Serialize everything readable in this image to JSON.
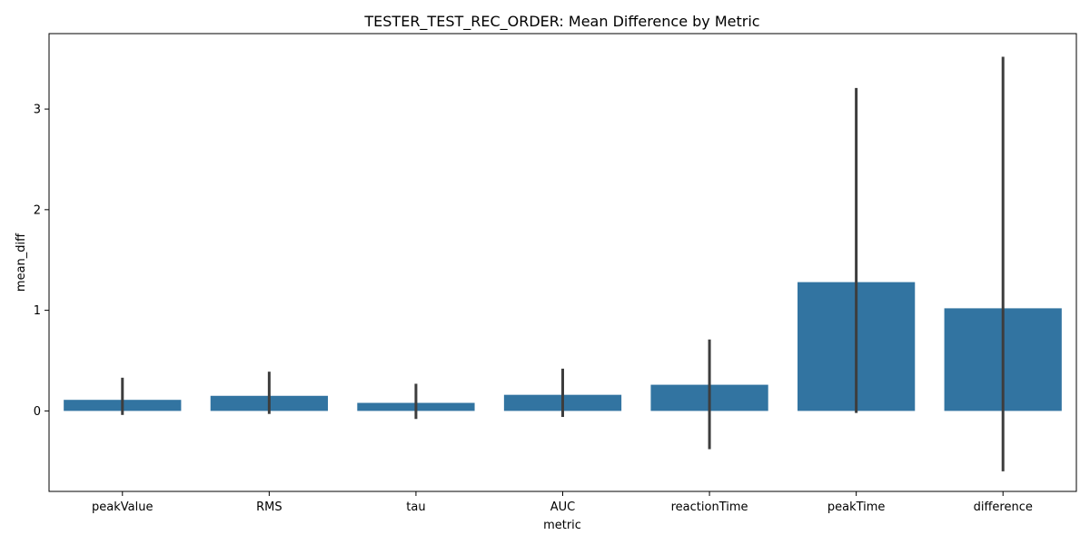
{
  "chart_data": {
    "type": "bar",
    "title": "TESTER_TEST_REC_ORDER: Mean Difference by Metric",
    "xlabel": "metric",
    "ylabel": "mean_diff",
    "categories": [
      "peakValue",
      "RMS",
      "tau",
      "AUC",
      "reactionTime",
      "peakTime",
      "difference"
    ],
    "values": [
      0.11,
      0.15,
      0.08,
      0.16,
      0.26,
      1.28,
      1.02
    ],
    "error_low": [
      -0.04,
      -0.03,
      -0.08,
      -0.06,
      -0.38,
      -0.02,
      -0.6
    ],
    "error_high": [
      0.33,
      0.39,
      0.27,
      0.42,
      0.71,
      3.21,
      3.52
    ],
    "ylim": [
      -0.8,
      3.75
    ],
    "yticks": [
      0,
      1,
      2,
      3
    ],
    "colors": {
      "bar": "#3274a1",
      "errorbar": "#3d3d3d"
    },
    "grid": false,
    "legend": "none"
  }
}
